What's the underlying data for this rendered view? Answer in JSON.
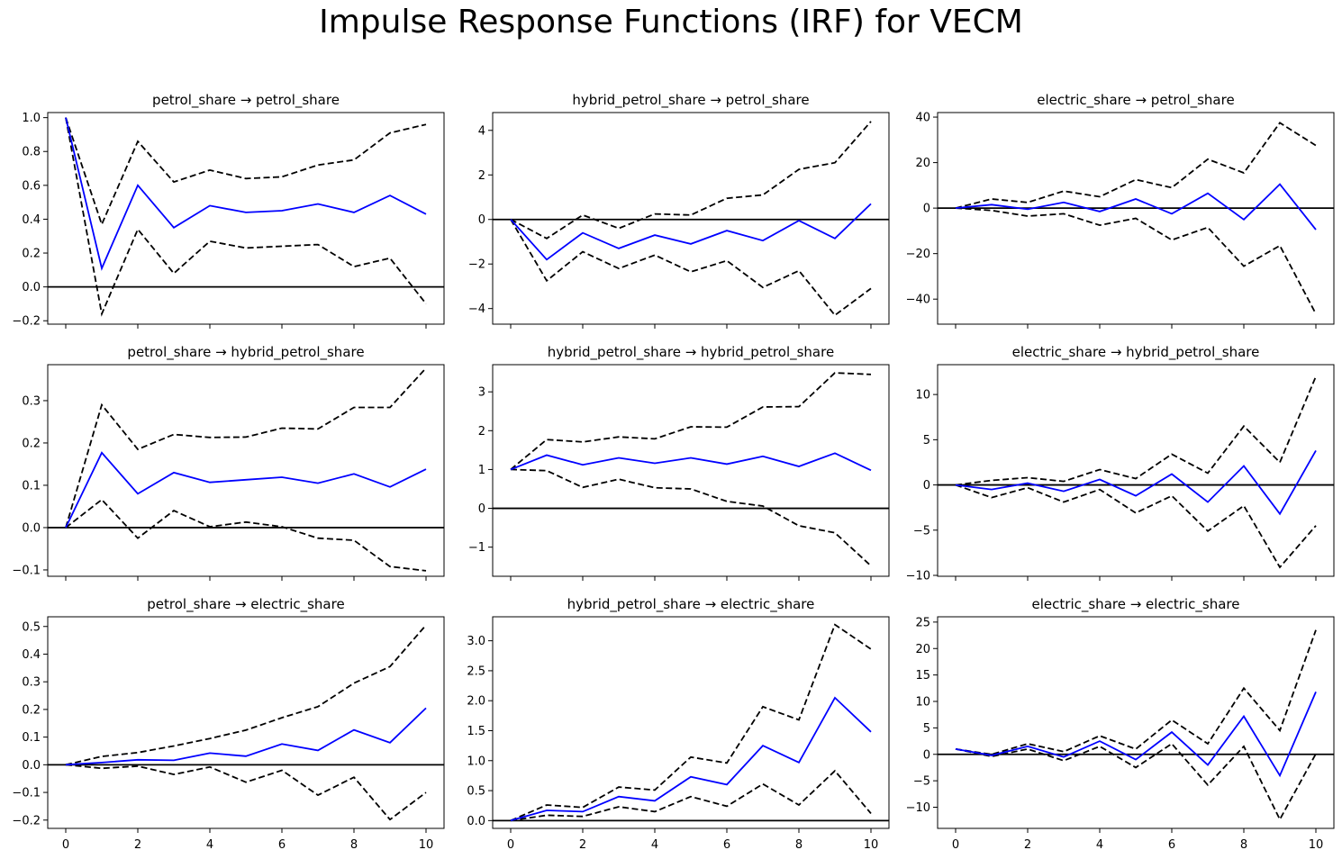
{
  "title": "Impulse Response Functions (IRF) for VECM",
  "colors": {
    "irf": "#0000ff",
    "bands": "#000000",
    "zero_line": "#000000"
  },
  "chart_data": [
    {
      "type": "line",
      "title": "petrol_share → petrol_share",
      "x": [
        0,
        1,
        2,
        3,
        4,
        5,
        6,
        7,
        8,
        9,
        10
      ],
      "ylim": [
        -0.22,
        1.03
      ],
      "yticks": [
        -0.2,
        0.0,
        0.2,
        0.4,
        0.6,
        0.8,
        1.0
      ],
      "ytick_labels": [
        "−0.2",
        "0.0",
        "0.2",
        "0.4",
        "0.6",
        "0.8",
        "1.0"
      ],
      "irf": [
        1.0,
        0.11,
        0.6,
        0.35,
        0.48,
        0.44,
        0.45,
        0.49,
        0.44,
        0.54,
        0.43
      ],
      "upper": [
        1.0,
        0.37,
        0.86,
        0.62,
        0.69,
        0.64,
        0.65,
        0.72,
        0.75,
        0.91,
        0.96
      ],
      "lower": [
        1.0,
        -0.16,
        0.34,
        0.08,
        0.27,
        0.23,
        0.24,
        0.25,
        0.12,
        0.17,
        -0.1
      ]
    },
    {
      "type": "line",
      "title": "hybrid_petrol_share → petrol_share",
      "x": [
        0,
        1,
        2,
        3,
        4,
        5,
        6,
        7,
        8,
        9,
        10
      ],
      "ylim": [
        -4.7,
        4.8
      ],
      "yticks": [
        -4,
        -2,
        0,
        2,
        4
      ],
      "ytick_labels": [
        "−4",
        "−2",
        "0",
        "2",
        "4"
      ],
      "irf": [
        0.0,
        -1.8,
        -0.6,
        -1.3,
        -0.7,
        -1.1,
        -0.5,
        -0.95,
        -0.05,
        -0.85,
        0.7
      ],
      "upper": [
        0.0,
        -0.85,
        0.2,
        -0.4,
        0.25,
        0.2,
        0.95,
        1.1,
        2.25,
        2.55,
        4.4
      ],
      "lower": [
        0.0,
        -2.75,
        -1.45,
        -2.2,
        -1.6,
        -2.35,
        -1.85,
        -3.05,
        -2.3,
        -4.3,
        -3.1
      ]
    },
    {
      "type": "line",
      "title": "electric_share → petrol_share",
      "x": [
        0,
        1,
        2,
        3,
        4,
        5,
        6,
        7,
        8,
        9,
        10
      ],
      "ylim": [
        -51,
        42
      ],
      "yticks": [
        -40,
        -20,
        0,
        20,
        40
      ],
      "ytick_labels": [
        "−40",
        "−20",
        "0",
        "20",
        "40"
      ],
      "irf": [
        0.0,
        1.5,
        -0.5,
        2.5,
        -1.5,
        4.0,
        -2.5,
        6.5,
        -5.0,
        10.5,
        -9.5
      ],
      "upper": [
        0.0,
        4.0,
        2.5,
        7.5,
        5.0,
        12.5,
        9.0,
        21.5,
        15.5,
        37.5,
        27.5
      ],
      "lower": [
        0.0,
        -1.0,
        -3.5,
        -2.5,
        -7.5,
        -4.5,
        -14.0,
        -8.5,
        -25.5,
        -16.5,
        -46.5
      ]
    },
    {
      "type": "line",
      "title": "petrol_share → hybrid_petrol_share",
      "x": [
        0,
        1,
        2,
        3,
        4,
        5,
        6,
        7,
        8,
        9,
        10
      ],
      "ylim": [
        -0.115,
        0.385
      ],
      "yticks": [
        -0.1,
        0.0,
        0.1,
        0.2,
        0.3
      ],
      "ytick_labels": [
        "−0.1",
        "0.0",
        "0.1",
        "0.2",
        "0.3"
      ],
      "irf": [
        0.0,
        0.177,
        0.08,
        0.13,
        0.107,
        0.113,
        0.119,
        0.105,
        0.127,
        0.096,
        0.138
      ],
      "upper": [
        0.0,
        0.29,
        0.185,
        0.22,
        0.213,
        0.214,
        0.235,
        0.233,
        0.284,
        0.284,
        0.377
      ],
      "lower": [
        0.0,
        0.066,
        -0.025,
        0.04,
        0.002,
        0.013,
        0.002,
        -0.025,
        -0.03,
        -0.092,
        -0.102
      ]
    },
    {
      "type": "line",
      "title": "hybrid_petrol_share → hybrid_petrol_share",
      "x": [
        0,
        1,
        2,
        3,
        4,
        5,
        6,
        7,
        8,
        9,
        10
      ],
      "ylim": [
        -1.75,
        3.7
      ],
      "yticks": [
        -1,
        0,
        1,
        2,
        3
      ],
      "ytick_labels": [
        "−1",
        "0",
        "1",
        "2",
        "3"
      ],
      "irf": [
        1.0,
        1.37,
        1.12,
        1.3,
        1.16,
        1.3,
        1.14,
        1.34,
        1.08,
        1.42,
        0.98
      ],
      "upper": [
        1.0,
        1.77,
        1.71,
        1.84,
        1.79,
        2.1,
        2.09,
        2.61,
        2.62,
        3.49,
        3.45
      ],
      "lower": [
        1.0,
        0.97,
        0.54,
        0.75,
        0.53,
        0.5,
        0.18,
        0.06,
        -0.45,
        -0.63,
        -1.48
      ]
    },
    {
      "type": "line",
      "title": "electric_share → hybrid_petrol_share",
      "x": [
        0,
        1,
        2,
        3,
        4,
        5,
        6,
        7,
        8,
        9,
        10
      ],
      "ylim": [
        -10.1,
        13.3
      ],
      "yticks": [
        -10,
        -5,
        0,
        5,
        10
      ],
      "ytick_labels": [
        "−10",
        "−5",
        "0",
        "5",
        "10"
      ],
      "irf": [
        0.0,
        -0.5,
        0.2,
        -0.7,
        0.6,
        -1.2,
        1.2,
        -1.9,
        2.1,
        -3.2,
        3.8
      ],
      "upper": [
        0.0,
        0.5,
        0.8,
        0.4,
        1.7,
        0.7,
        3.4,
        1.3,
        6.5,
        2.5,
        12.0
      ],
      "lower": [
        0.0,
        -1.4,
        -0.3,
        -1.9,
        -0.5,
        -3.1,
        -1.2,
        -5.1,
        -2.3,
        -9.1,
        -4.5
      ]
    },
    {
      "type": "line",
      "title": "petrol_share → electric_share",
      "x": [
        0,
        1,
        2,
        3,
        4,
        5,
        6,
        7,
        8,
        9,
        10
      ],
      "ylim": [
        -0.23,
        0.535
      ],
      "yticks": [
        -0.2,
        -0.1,
        0.0,
        0.1,
        0.2,
        0.3,
        0.4,
        0.5
      ],
      "ytick_labels": [
        "−0.2",
        "−0.1",
        "0.0",
        "0.1",
        "0.2",
        "0.3",
        "0.4",
        "0.5"
      ],
      "irf": [
        0.0,
        0.008,
        0.018,
        0.016,
        0.042,
        0.031,
        0.075,
        0.052,
        0.126,
        0.08,
        0.205
      ],
      "upper": [
        0.0,
        0.03,
        0.044,
        0.068,
        0.095,
        0.125,
        0.17,
        0.21,
        0.295,
        0.355,
        0.505
      ],
      "lower": [
        0.0,
        -0.013,
        -0.005,
        -0.035,
        -0.008,
        -0.063,
        -0.02,
        -0.11,
        -0.045,
        -0.198,
        -0.1
      ]
    },
    {
      "type": "line",
      "title": "hybrid_petrol_share → electric_share",
      "x": [
        0,
        1,
        2,
        3,
        4,
        5,
        6,
        7,
        8,
        9,
        10
      ],
      "ylim": [
        -0.13,
        3.4
      ],
      "yticks": [
        0.0,
        0.5,
        1.0,
        1.5,
        2.0,
        2.5,
        3.0
      ],
      "ytick_labels": [
        "0.0",
        "0.5",
        "1.0",
        "1.5",
        "2.0",
        "2.5",
        "3.0"
      ],
      "irf": [
        0.0,
        0.17,
        0.15,
        0.4,
        0.33,
        0.73,
        0.6,
        1.25,
        0.97,
        2.05,
        1.48
      ],
      "upper": [
        0.0,
        0.26,
        0.22,
        0.56,
        0.51,
        1.06,
        0.96,
        1.9,
        1.68,
        3.27,
        2.86
      ],
      "lower": [
        0.0,
        0.09,
        0.07,
        0.23,
        0.15,
        0.4,
        0.24,
        0.61,
        0.26,
        0.83,
        0.12
      ]
    },
    {
      "type": "line",
      "title": "electric_share → electric_share",
      "x": [
        0,
        1,
        2,
        3,
        4,
        5,
        6,
        7,
        8,
        9,
        10
      ],
      "ylim": [
        -14,
        26
      ],
      "yticks": [
        -10,
        -5,
        0,
        5,
        10,
        15,
        20,
        25
      ],
      "ytick_labels": [
        "−10",
        "−5",
        "0",
        "5",
        "10",
        "15",
        "20",
        "25"
      ],
      "irf": [
        1.0,
        -0.2,
        1.5,
        -0.5,
        2.5,
        -1.0,
        4.2,
        -2.0,
        7.2,
        -4.0,
        11.8
      ],
      "upper": [
        1.0,
        0.0,
        2.0,
        0.5,
        3.5,
        1.0,
        6.5,
        2.0,
        12.5,
        4.5,
        23.5
      ],
      "lower": [
        1.0,
        -0.4,
        1.0,
        -1.2,
        1.5,
        -2.5,
        2.0,
        -5.8,
        1.5,
        -12.3,
        0.1
      ]
    }
  ]
}
